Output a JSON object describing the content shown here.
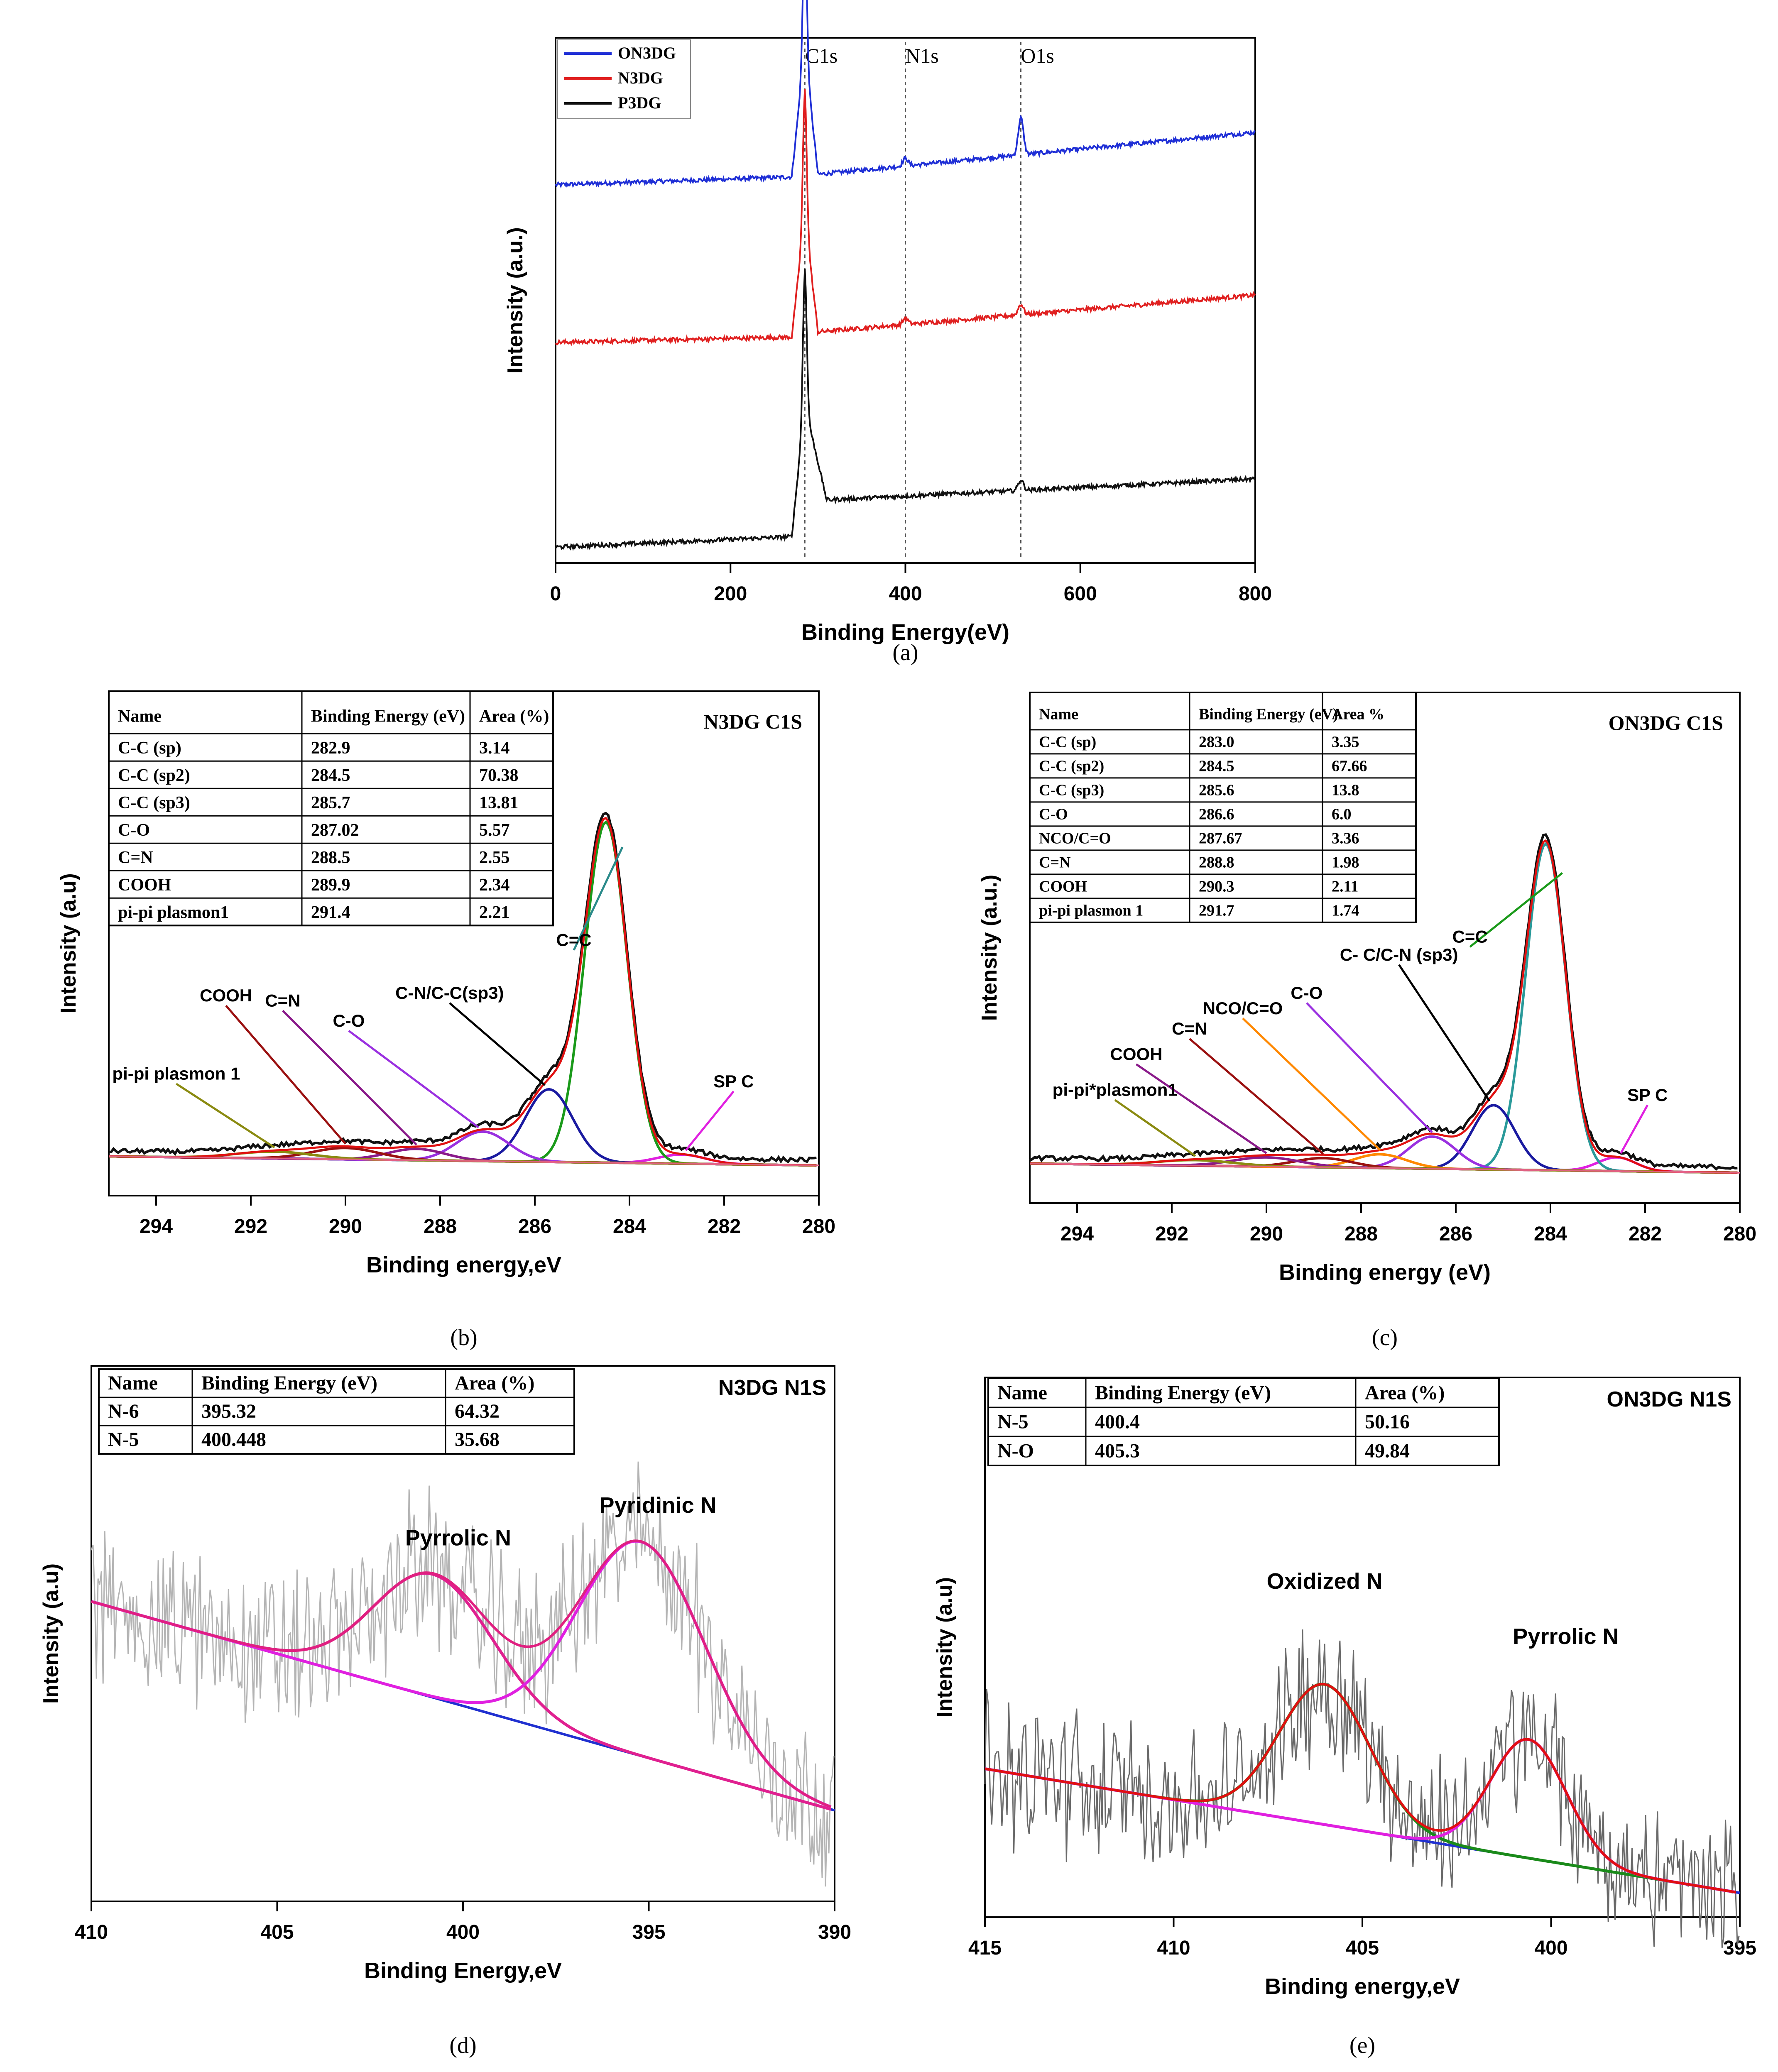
{
  "chart_data": [
    {
      "id": "a",
      "panel_label": "(a)",
      "type": "line",
      "title": "",
      "xlabel": "Binding Energy(eV)",
      "ylabel": "Intensity (a.u.)",
      "xlim": [
        0,
        800
      ],
      "xticks": [
        "0",
        "200",
        "400",
        "600",
        "800"
      ],
      "xtick_values": [
        0,
        200,
        400,
        600,
        800
      ],
      "peak_markers": [
        {
          "label": "C1s",
          "x": 285
        },
        {
          "label": "N1s",
          "x": 400
        },
        {
          "label": "O1s",
          "x": 532
        }
      ],
      "legend": [
        "ON3DG",
        "N3DG",
        "P3DG"
      ],
      "series": [
        {
          "name": "ON3DG",
          "color": "#1f2fd6",
          "baseline": [
            [
              0,
              0.72
            ],
            [
              270,
              0.735
            ],
            [
              285,
              0.98
            ],
            [
              300,
              0.74
            ],
            [
              800,
              0.82
            ]
          ],
          "peaks": [
            [
              285,
              0.25
            ],
            [
              400,
              0.015
            ],
            [
              532,
              0.07
            ]
          ]
        },
        {
          "name": "N3DG",
          "color": "#e02020",
          "baseline": [
            [
              0,
              0.42
            ],
            [
              270,
              0.43
            ],
            [
              285,
              0.66
            ],
            [
              300,
              0.44
            ],
            [
              800,
              0.51
            ]
          ],
          "peaks": [
            [
              285,
              0.24
            ],
            [
              400,
              0.012
            ],
            [
              532,
              0.02
            ]
          ]
        },
        {
          "name": "P3DG",
          "color": "#111111",
          "baseline": [
            [
              0,
              0.03
            ],
            [
              270,
              0.05
            ],
            [
              285,
              0.3
            ],
            [
              310,
              0.12
            ],
            [
              800,
              0.16
            ]
          ],
          "peaks": [
            [
              285,
              0.26
            ],
            [
              532,
              0.02
            ]
          ]
        }
      ]
    },
    {
      "id": "b",
      "panel_label": "(b)",
      "type": "line",
      "title": "N3DG C1S",
      "xlabel": "Binding energy,eV",
      "ylabel": "Intensity (a.u)",
      "xlim": [
        295,
        280
      ],
      "xticks": [
        "294",
        "292",
        "290",
        "288",
        "286",
        "284",
        "282",
        "280"
      ],
      "xtick_values": [
        294,
        292,
        290,
        288,
        286,
        284,
        282,
        280
      ],
      "table": {
        "headers": [
          "Name",
          "Binding Energy (eV)",
          "Area (%)"
        ],
        "rows": [
          [
            "C-C (sp)",
            "282.9",
            "3.14"
          ],
          [
            "C-C (sp2)",
            "284.5",
            "70.38"
          ],
          [
            "C-C (sp3)",
            "285.7",
            "13.81"
          ],
          [
            "C-O",
            "287.02",
            "5.57"
          ],
          [
            "C=N",
            "288.5",
            "2.55"
          ],
          [
            "COOH",
            "289.9",
            "2.34"
          ],
          [
            "pi-pi plasmon1",
            "291.4",
            "2.21"
          ]
        ]
      },
      "peaks": [
        {
          "label": "SP C",
          "center": 282.9,
          "height": 0.02,
          "width": 0.5,
          "color": "#e020e0"
        },
        {
          "label": "C=C",
          "center": 284.5,
          "height": 0.75,
          "width": 0.45,
          "color": "#1a9a1a"
        },
        {
          "label": "C-N/C-C(sp3)",
          "center": 285.7,
          "height": 0.16,
          "width": 0.5,
          "color": "#1a1aa0"
        },
        {
          "label": "C-O",
          "center": 287.1,
          "height": 0.065,
          "width": 0.55,
          "color": "#9a30e0"
        },
        {
          "label": "C=N",
          "center": 288.5,
          "height": 0.025,
          "width": 0.6,
          "color": "#8a1a8a"
        },
        {
          "label": "COOH",
          "center": 290.0,
          "height": 0.025,
          "width": 0.7,
          "color": "#9a1010"
        },
        {
          "label": "pi-pi plasmon 1",
          "center": 291.5,
          "height": 0.015,
          "width": 0.8,
          "color": "#8a8a10"
        }
      ],
      "annotations": [
        "C=C",
        "C-N/C-C(sp3)",
        "C-O",
        "C=N",
        "COOH",
        "pi-pi plasmon 1",
        "SP C"
      ]
    },
    {
      "id": "c",
      "panel_label": "(c)",
      "type": "line",
      "title": "ON3DG C1S",
      "xlabel": "Binding energy (eV)",
      "ylabel": "Intensity (a.u.)",
      "xlim": [
        295,
        280
      ],
      "xticks": [
        "294",
        "292",
        "290",
        "288",
        "286",
        "284",
        "282",
        "280"
      ],
      "xtick_values": [
        294,
        292,
        290,
        288,
        286,
        284,
        282,
        280
      ],
      "table": {
        "headers": [
          "Name",
          "Binding Energy (eV)",
          "Area %"
        ],
        "rows": [
          [
            "C-C (sp)",
            "283.0",
            "3.35"
          ],
          [
            "C-C (sp2)",
            "284.5",
            "67.66"
          ],
          [
            "C-C (sp3)",
            "285.6",
            "13.8"
          ],
          [
            "C-O",
            "286.6",
            "6.0"
          ],
          [
            "NCO/C=O",
            "287.67",
            "3.36"
          ],
          [
            "C=N",
            "288.8",
            "1.98"
          ],
          [
            "COOH",
            "290.3",
            "2.11"
          ],
          [
            "pi-pi plasmon 1",
            "291.7",
            "1.74"
          ]
        ]
      },
      "peaks": [
        {
          "label": "SP C",
          "center": 282.6,
          "height": 0.03,
          "width": 0.4,
          "color": "#e020e0"
        },
        {
          "label": "C=C",
          "center": 284.1,
          "height": 0.71,
          "width": 0.42,
          "color": "#2a9a9a"
        },
        {
          "label": "C- C/C-N (sp3)",
          "center": 285.2,
          "height": 0.14,
          "width": 0.45,
          "color": "#1a1aa0"
        },
        {
          "label": "C-O",
          "center": 286.5,
          "height": 0.07,
          "width": 0.5,
          "color": "#9a30e0"
        },
        {
          "label": "NCO/C=O",
          "center": 287.6,
          "height": 0.03,
          "width": 0.55,
          "color": "#ff8800"
        },
        {
          "label": "C=N",
          "center": 288.8,
          "height": 0.02,
          "width": 0.6,
          "color": "#9a1010"
        },
        {
          "label": "COOH",
          "center": 290.0,
          "height": 0.02,
          "width": 0.7,
          "color": "#8a1a8a"
        },
        {
          "label": "pi-pi*plasmon1",
          "center": 291.5,
          "height": 0.012,
          "width": 0.8,
          "color": "#8a8a10"
        }
      ],
      "annotations": [
        "C=C",
        "C- C/C-N (sp3)",
        "C-O",
        "NCO/C=O",
        "C=N",
        "COOH",
        "pi-pi*plasmon1",
        "SP C"
      ]
    },
    {
      "id": "d",
      "panel_label": "(d)",
      "type": "line",
      "title": "N3DG N1S",
      "xlabel": "Binding Energy,eV",
      "ylabel": "Intensity (a.u)",
      "xlim": [
        410,
        390
      ],
      "xticks": [
        "410",
        "405",
        "400",
        "395",
        "390"
      ],
      "xtick_values": [
        410,
        405,
        400,
        395,
        390
      ],
      "table": {
        "headers": [
          "Name",
          "Binding Energy (eV)",
          "Area (%)"
        ],
        "rows": [
          [
            "N-6",
            "395.32",
            "64.32"
          ],
          [
            "N-5",
            "400.448",
            "35.68"
          ]
        ]
      },
      "peaks": [
        {
          "label": "Pyrrolic N",
          "center": 400.8,
          "height": 0.23,
          "width": 1.6
        },
        {
          "label": "Pyridinic N",
          "center": 395.2,
          "height": 0.4,
          "width": 1.7
        }
      ],
      "annotations": [
        "Pyrrolic N",
        "Pyridinic N"
      ]
    },
    {
      "id": "e",
      "panel_label": "(e)",
      "type": "line",
      "title": "ON3DG N1S",
      "xlabel": "Binding energy,eV",
      "ylabel": "Intensity (a.u)",
      "xlim": [
        415,
        395
      ],
      "xticks": [
        "415",
        "410",
        "405",
        "400",
        "395"
      ],
      "xtick_values": [
        415,
        410,
        405,
        400,
        395
      ],
      "table": {
        "headers": [
          "Name",
          "Binding Energy (eV)",
          "Area (%)"
        ],
        "rows": [
          [
            "N-5",
            "400.4",
            "50.16"
          ],
          [
            "N-O",
            "405.3",
            "49.84"
          ]
        ]
      },
      "peaks": [
        {
          "label": "Oxidized N",
          "center": 406.0,
          "height": 0.26,
          "width": 1.2
        },
        {
          "label": "Pyrrolic N",
          "center": 400.6,
          "height": 0.22,
          "width": 1.0
        }
      ],
      "annotations": [
        "Oxidized N",
        "Pyrrolic N"
      ]
    }
  ]
}
